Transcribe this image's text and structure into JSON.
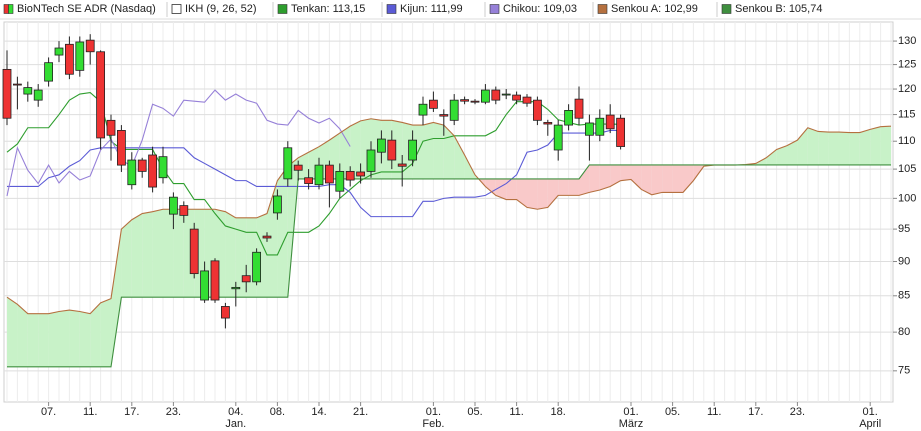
{
  "chart_data": {
    "type": "candlestick",
    "name": "BioNTech SE ADR (Nasdaq)",
    "indicator": "IKH (9, 26, 52)",
    "categories": [
      null,
      null,
      null,
      null,
      "07.",
      null,
      null,
      null,
      "11.",
      null,
      null,
      null,
      "17.",
      null,
      null,
      null,
      "23.",
      null,
      null,
      null,
      null,
      null,
      "04.",
      null,
      null,
      null,
      "08.",
      null,
      null,
      null,
      "14.",
      null,
      null,
      null,
      "21.",
      null,
      null,
      null,
      null,
      null,
      null,
      "01.",
      null,
      null,
      null,
      "05.",
      null,
      null,
      null,
      "11.",
      null,
      null,
      null,
      "18.",
      null,
      null,
      null,
      null,
      null,
      null,
      "01.",
      null,
      null,
      null,
      "05.",
      null,
      null,
      null,
      "11.",
      null,
      null,
      null,
      "17.",
      null,
      null,
      null,
      "23.",
      null,
      null,
      null,
      null,
      null,
      null,
      "01.",
      null,
      null
    ],
    "month_labels": [
      null,
      null,
      null,
      null,
      null,
      null,
      null,
      null,
      null,
      null,
      null,
      null,
      null,
      null,
      null,
      null,
      null,
      null,
      null,
      null,
      null,
      null,
      "Jan.",
      null,
      null,
      null,
      null,
      null,
      null,
      null,
      null,
      null,
      null,
      null,
      null,
      null,
      null,
      null,
      null,
      null,
      null,
      "Feb.",
      null,
      null,
      null,
      null,
      null,
      null,
      null,
      null,
      null,
      null,
      null,
      null,
      null,
      null,
      null,
      null,
      null,
      null,
      "März",
      null,
      null,
      null,
      null,
      null,
      null,
      null,
      null,
      null,
      null,
      null,
      null,
      null,
      null,
      null,
      null,
      null,
      null,
      null,
      null,
      null,
      null,
      "April",
      null,
      null
    ],
    "open": [
      124.0,
      121.0,
      119.0,
      117.8,
      121.6,
      127.0,
      129.3,
      123.8,
      130.2,
      127.7,
      113.9,
      112.0,
      102.3,
      106.6,
      107.5,
      103.5,
      97.4,
      98.8,
      95.0,
      84.4,
      90.1,
      83.5,
      86.0,
      87.9,
      87.0,
      93.9,
      97.6,
      103.3,
      105.7,
      103.5,
      102.3,
      105.7,
      101.2,
      104.6,
      104.5,
      104.6,
      108.0,
      110.2,
      105.9,
      106.6,
      114.9,
      117.8,
      115.0,
      113.9,
      117.9,
      117.6,
      117.4,
      119.8,
      118.9,
      118.8,
      118.4,
      117.8,
      113.5,
      108.4,
      113.0,
      118.0,
      111.1,
      111.1,
      114.9,
      114.3,
      null,
      null,
      null,
      null,
      null,
      null,
      null,
      null,
      null,
      null,
      null,
      null,
      null,
      null,
      null,
      null,
      null,
      null,
      null,
      null,
      null,
      null,
      null,
      null,
      null,
      null
    ],
    "high": [
      128.0,
      122.5,
      121.5,
      121.0,
      126.5,
      130.0,
      131.0,
      131.0,
      131.5,
      128.0,
      115.0,
      113.0,
      108.0,
      107.0,
      109.0,
      109.0,
      101.0,
      99.5,
      96.0,
      90.0,
      90.5,
      84.0,
      87.0,
      89.5,
      92.0,
      94.5,
      101.5,
      110.0,
      106.5,
      105.0,
      107.0,
      106.5,
      106.0,
      105.5,
      106.0,
      110.0,
      112.0,
      112.0,
      107.5,
      112.0,
      118.5,
      119.5,
      116.0,
      119.0,
      118.5,
      118.0,
      121.0,
      120.5,
      120.0,
      119.5,
      119.0,
      118.5,
      114.0,
      114.0,
      117.0,
      120.5,
      115.0,
      116.0,
      117.0,
      115.0,
      null,
      null,
      null,
      null,
      null,
      null,
      null,
      null,
      null,
      null,
      null,
      null,
      null,
      null,
      null,
      null,
      null,
      null,
      null,
      null,
      null,
      null,
      null,
      null,
      null,
      null
    ],
    "low": [
      113.0,
      116.0,
      117.5,
      116.5,
      120.5,
      125.5,
      122.0,
      122.5,
      125.0,
      108.5,
      106.5,
      104.5,
      101.5,
      103.5,
      101.0,
      102.5,
      95.0,
      96.0,
      87.5,
      84.0,
      84.0,
      80.5,
      83.5,
      85.5,
      86.5,
      93.0,
      96.5,
      102.0,
      103.0,
      101.5,
      101.5,
      98.5,
      100.0,
      102.0,
      102.5,
      103.5,
      106.0,
      105.0,
      102.0,
      105.5,
      113.0,
      115.5,
      111.0,
      113.0,
      117.0,
      117.0,
      117.0,
      117.0,
      118.0,
      117.0,
      116.5,
      113.0,
      111.0,
      106.5,
      112.0,
      113.0,
      106.5,
      110.0,
      111.5,
      108.5,
      null,
      null,
      null,
      null,
      null,
      null,
      null,
      null,
      null,
      null,
      null,
      null,
      null,
      null,
      null,
      null,
      null,
      null,
      null,
      null,
      null,
      null,
      null,
      null,
      null,
      null
    ],
    "close": [
      114.3,
      120.8,
      120.3,
      119.8,
      125.4,
      128.5,
      123.0,
      129.8,
      127.7,
      110.6,
      111.1,
      105.7,
      106.6,
      104.6,
      101.9,
      107.2,
      100.2,
      97.2,
      88.2,
      88.6,
      84.4,
      81.9,
      86.2,
      87.0,
      91.4,
      93.6,
      100.4,
      108.8,
      104.8,
      102.5,
      105.7,
      102.6,
      104.6,
      103.1,
      103.8,
      108.4,
      110.4,
      106.6,
      105.5,
      110.2,
      117.0,
      116.2,
      114.7,
      117.8,
      117.6,
      117.4,
      119.8,
      117.8,
      119.0,
      117.8,
      117.2,
      113.9,
      113.2,
      113.0,
      115.8,
      114.3,
      113.4,
      114.3,
      112.3,
      109.03,
      null,
      null,
      null,
      null,
      null,
      null,
      null,
      null,
      null,
      null,
      null,
      null,
      null,
      null,
      null,
      null,
      null,
      null,
      null,
      null,
      null,
      null,
      null,
      null,
      null,
      null
    ],
    "up_color": "#33dd33",
    "down_color": "#ee3333",
    "series": [
      {
        "name": "Tenkan: 113,15",
        "color": "#2e9e2e",
        "values": [
          108.0,
          109.5,
          112.5,
          112.5,
          112.5,
          115,
          117.8,
          119,
          119.3,
          117.5,
          110,
          108.5,
          108.5,
          108.5,
          108.5,
          105,
          102.5,
          102.5,
          99.8,
          99.8,
          97.5,
          95.5,
          95,
          94.5,
          94.5,
          91,
          91,
          94.5,
          94.5,
          94.5,
          95.5,
          97.5,
          100,
          101.5,
          103,
          104,
          104.5,
          104.5,
          104.5,
          106,
          110,
          110.5,
          110.5,
          111,
          111,
          111,
          111,
          112,
          115,
          117.5,
          117.5,
          117.5,
          116,
          114,
          113.5,
          113,
          113.2,
          113.2,
          113.2,
          113.15,
          null,
          null,
          null,
          null,
          null,
          null,
          null,
          null,
          null,
          null,
          null,
          null,
          null,
          null,
          null,
          null,
          null,
          null,
          null,
          null,
          null,
          null,
          null,
          null,
          null,
          null
        ]
      },
      {
        "name": "Kijun: 111,99",
        "color": "#5b5bd6",
        "values": [
          102,
          102,
          102,
          102,
          103.5,
          104,
          105.5,
          106.5,
          108.4,
          108.8,
          108.8,
          108.8,
          108.8,
          108.8,
          108.8,
          108.8,
          108.8,
          108.8,
          107,
          106,
          105,
          104,
          103,
          103,
          102,
          102,
          102,
          102,
          102,
          102,
          102,
          102.3,
          102.3,
          101,
          98.5,
          97,
          97,
          97,
          97,
          97,
          99.5,
          99.5,
          100,
          100.2,
          100.2,
          100.2,
          100.5,
          101.5,
          102.5,
          104,
          108,
          108.4,
          109.3,
          111.5,
          111.5,
          111.5,
          111.5,
          111.5,
          111.99,
          111.99,
          null,
          null,
          null,
          null,
          null,
          null,
          null,
          null,
          null,
          null,
          null,
          null,
          null,
          null,
          null,
          null,
          null,
          null,
          null,
          null,
          null,
          null,
          null,
          null,
          null,
          null
        ]
      },
      {
        "name": "Chikou: 109,03",
        "color": "#9680d8",
        "values": [
          100.4,
          108.8,
          104.8,
          102.5,
          105.7,
          102.6,
          104.6,
          103.1,
          103.8,
          108.4,
          110.4,
          106.6,
          105.5,
          110.2,
          117.0,
          116.2,
          114.7,
          117.8,
          117.6,
          117.4,
          119.8,
          117.8,
          119.0,
          117.8,
          117.2,
          113.9,
          113.2,
          113.0,
          115.8,
          114.3,
          113.4,
          114.3,
          112.3,
          109.03,
          null,
          null,
          null,
          null,
          null,
          null,
          null,
          null,
          null,
          null,
          null,
          null,
          null,
          null,
          null,
          null,
          null,
          null,
          null,
          null,
          null,
          null,
          null,
          null,
          null,
          null,
          null,
          null,
          null,
          null,
          null,
          null,
          null,
          null,
          null,
          null,
          null,
          null,
          null,
          null,
          null,
          null,
          null,
          null,
          null,
          null,
          null,
          null,
          null,
          null,
          null,
          null
        ]
      },
      {
        "name": "Senkou A: 102,99",
        "color": "#b5703f",
        "values": [
          84.8,
          83.8,
          82.5,
          82.5,
          82.5,
          82.8,
          83,
          82.8,
          82.5,
          84,
          84.6,
          95,
          96.5,
          97.5,
          97.8,
          98.2,
          98.2,
          98.2,
          98.2,
          98.2,
          98.2,
          97.8,
          96.8,
          96.8,
          96.8,
          97.5,
          103,
          105.5,
          107,
          108,
          109,
          110.2,
          111.5,
          112.8,
          113.8,
          114.2,
          113.9,
          113.9,
          113.5,
          113,
          113,
          113.5,
          113,
          111,
          107.5,
          104,
          102,
          100.5,
          99.8,
          99.8,
          98.5,
          98.2,
          98.5,
          100.5,
          100.5,
          100.5,
          101,
          101.4,
          102,
          102.99,
          103.2,
          101.5,
          100.6,
          101,
          101,
          101,
          103,
          105.5,
          105.7,
          105.7,
          105.7,
          105.8,
          106,
          107,
          108.5,
          109.2,
          110.2,
          112.5,
          111.8,
          111.7,
          111.7,
          111.6,
          111.6,
          112.2,
          112.7,
          112.8
        ]
      },
      {
        "name": "Senkou B: 105,74",
        "color": "#3f8f3f",
        "values": [
          75.5,
          75.5,
          75.5,
          75.5,
          75.5,
          75.5,
          75.5,
          75.5,
          75.5,
          75.5,
          75.5,
          84.8,
          84.8,
          84.8,
          84.8,
          84.8,
          84.8,
          84.8,
          84.8,
          84.8,
          84.8,
          84.8,
          84.8,
          84.8,
          84.8,
          84.8,
          84.8,
          84.8,
          103.3,
          103.3,
          103.3,
          103.3,
          103.3,
          103.3,
          103.3,
          103.3,
          103.3,
          103.3,
          103.3,
          103.3,
          103.3,
          103.3,
          103.3,
          103.3,
          103.3,
          103.3,
          103.3,
          103.3,
          103.3,
          103.3,
          103.3,
          103.3,
          103.3,
          103.3,
          103.3,
          103.3,
          105.74,
          105.74,
          105.74,
          105.74,
          105.74,
          105.74,
          105.74,
          105.74,
          105.74,
          105.74,
          105.74,
          105.74,
          105.74,
          105.74,
          105.74,
          105.74,
          105.74,
          105.74,
          105.74,
          105.74,
          105.74,
          105.74,
          105.74,
          105.74,
          105.74,
          105.74,
          105.74,
          105.74,
          105.74,
          105.74
        ]
      }
    ],
    "cloud_colors": {
      "up": "#c8f2c8",
      "down": "#f9c9c9"
    },
    "ylim": [
      71.2,
      134.2
    ],
    "yticks": [
      75,
      80,
      85,
      90,
      95,
      100,
      105,
      110,
      115,
      120,
      125,
      130
    ],
    "log_scale": true,
    "grid": true,
    "legend": "top"
  }
}
